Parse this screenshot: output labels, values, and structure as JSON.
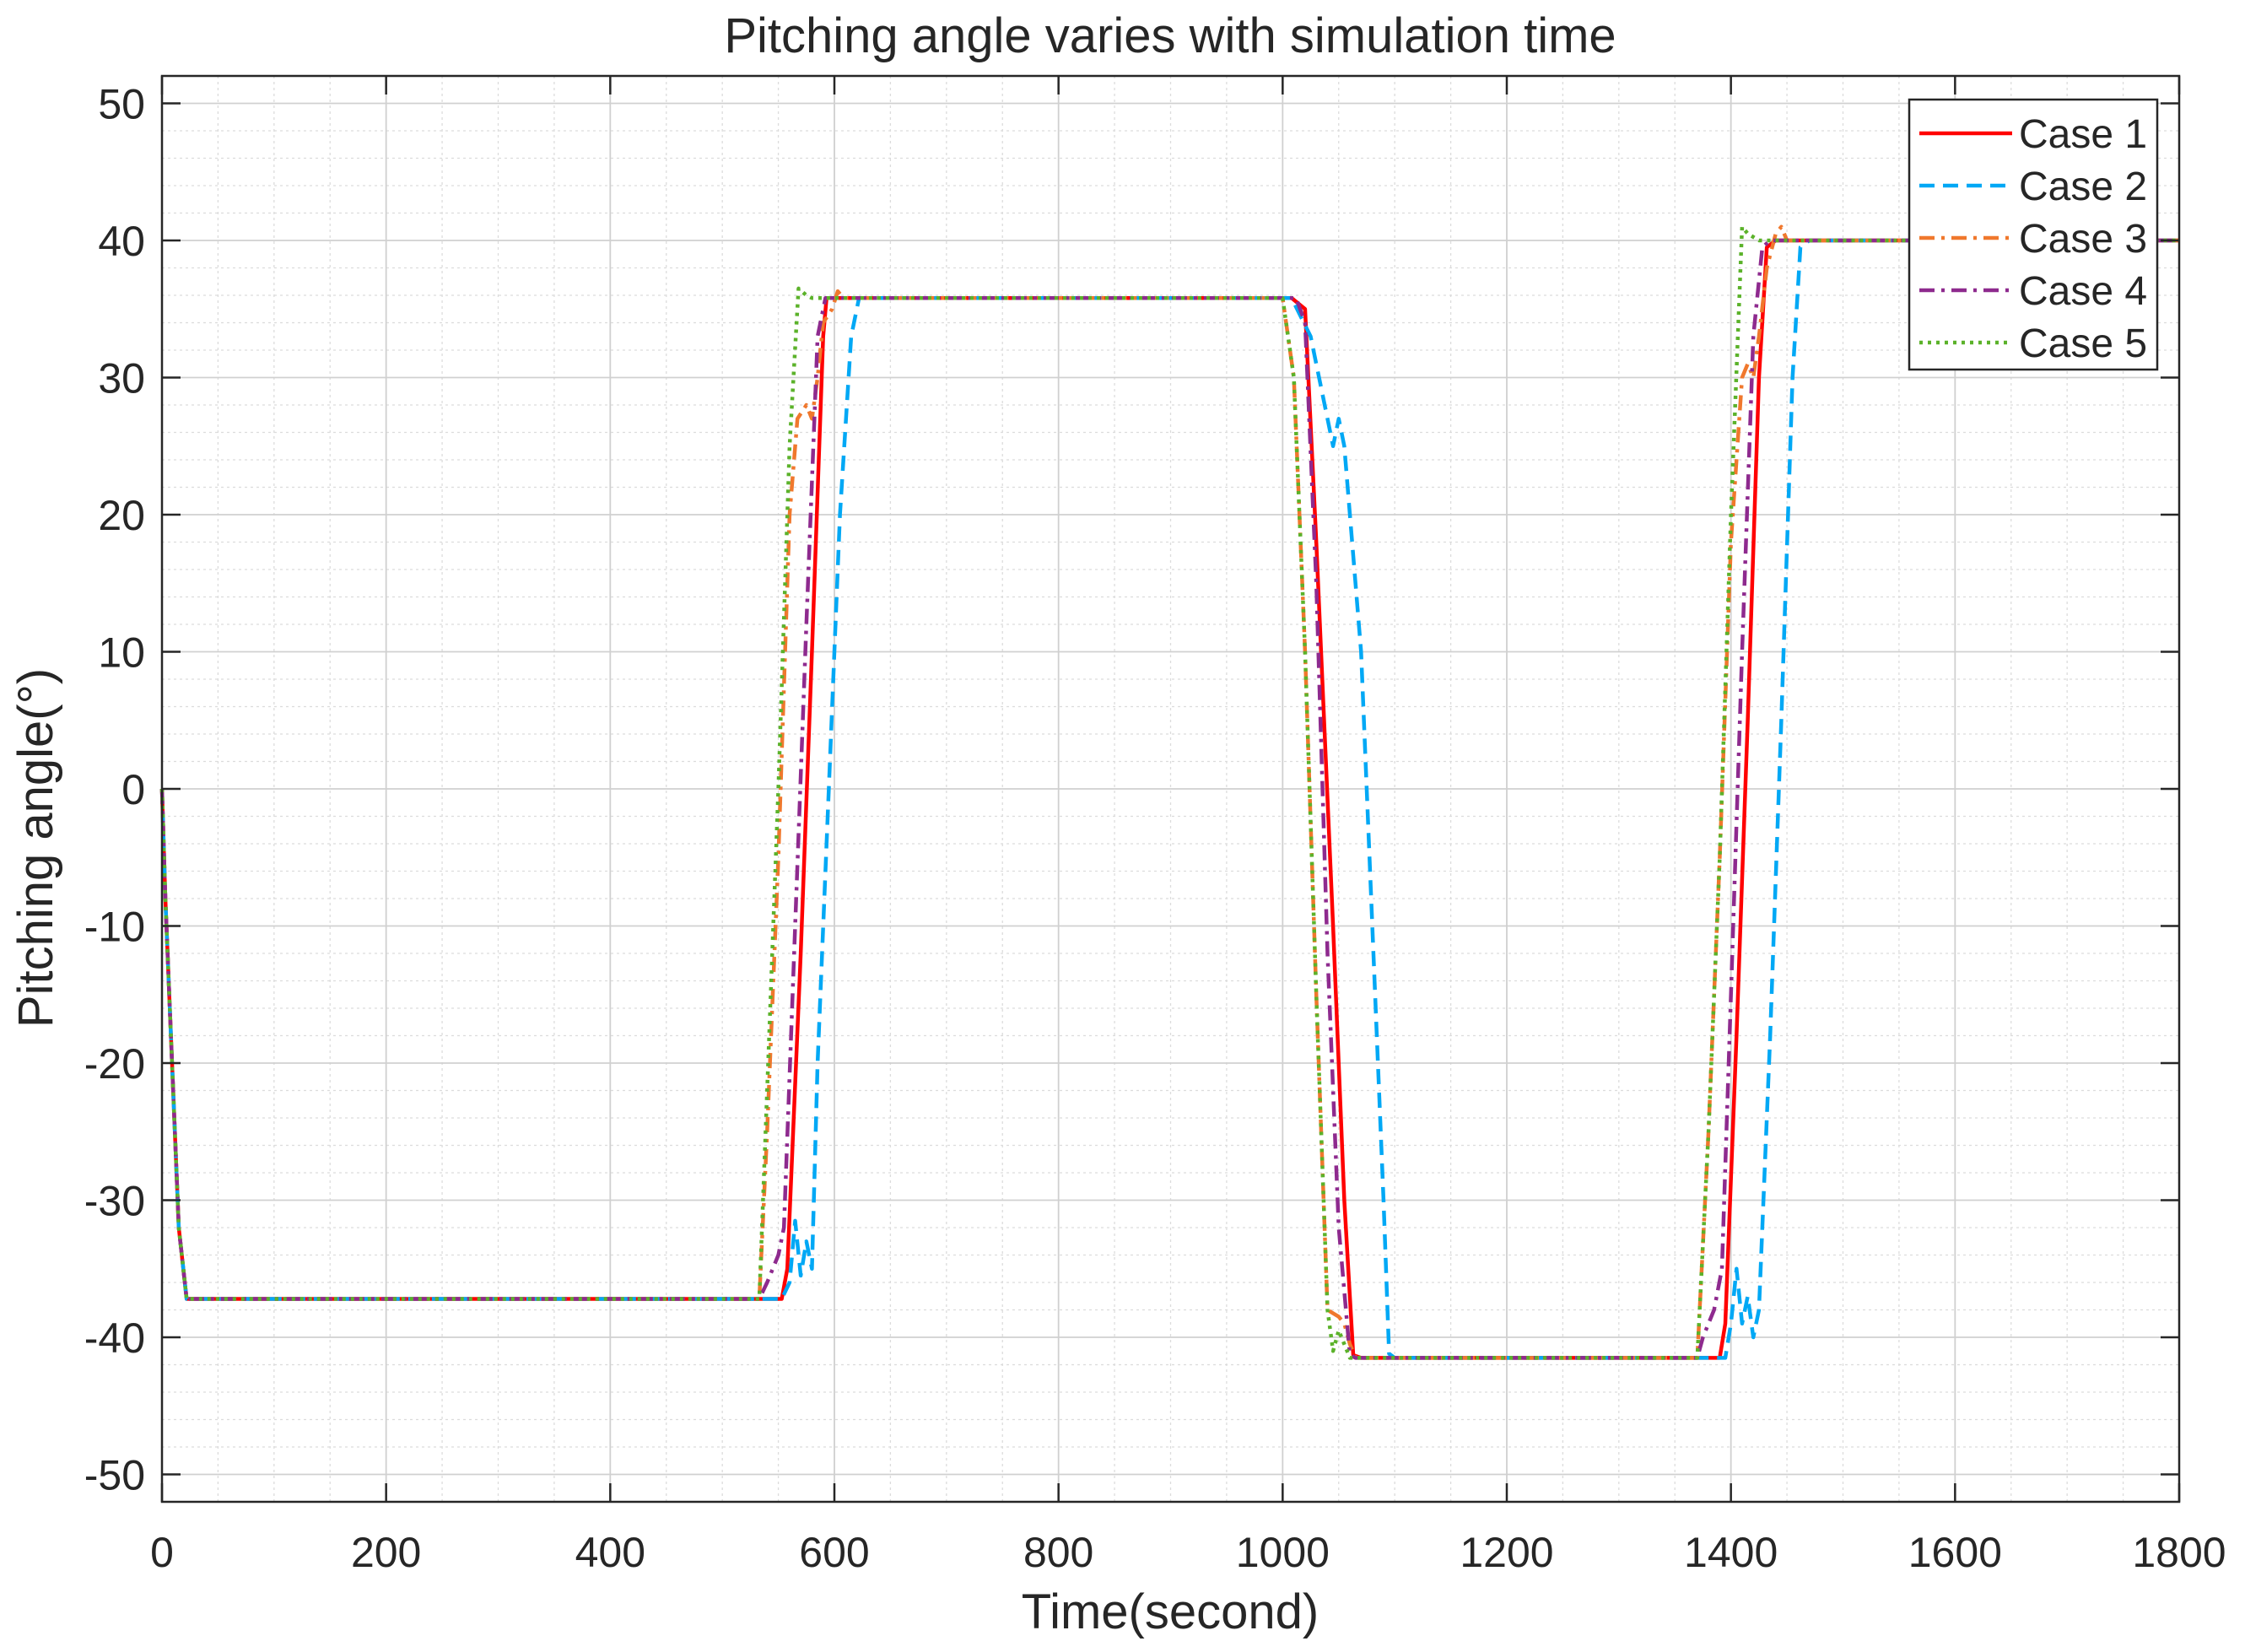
{
  "chart_data": {
    "type": "line",
    "title": "Pitching angle varies with simulation time",
    "xlabel": "Time(second)",
    "ylabel": "Pitching angle(°)",
    "xlim": [
      0,
      1800
    ],
    "ylim": [
      -52,
      52
    ],
    "xticks": [
      0,
      200,
      400,
      600,
      800,
      1000,
      1200,
      1400,
      1600,
      1800
    ],
    "yticks": [
      -50,
      -40,
      -30,
      -20,
      -10,
      0,
      10,
      20,
      30,
      40,
      50
    ],
    "grid": true,
    "minor_grid": true,
    "legend_position": "top-right",
    "series": [
      {
        "name": "Case 1",
        "color": "#ff0000",
        "style": "solid",
        "points": [
          [
            0,
            0
          ],
          [
            3,
            -8
          ],
          [
            8,
            -18
          ],
          [
            15,
            -32
          ],
          [
            22,
            -37.2
          ],
          [
            30,
            -37.2
          ],
          [
            553,
            -37.2
          ],
          [
            558,
            -35
          ],
          [
            570,
            -12
          ],
          [
            580,
            10
          ],
          [
            590,
            33
          ],
          [
            593,
            35.8
          ],
          [
            1008,
            35.8
          ],
          [
            1020,
            35
          ],
          [
            1030,
            18
          ],
          [
            1045,
            -10
          ],
          [
            1055,
            -30
          ],
          [
            1063,
            -41.3
          ],
          [
            1070,
            -41.5
          ],
          [
            1390,
            -41.5
          ],
          [
            1395,
            -39
          ],
          [
            1405,
            -18
          ],
          [
            1415,
            5
          ],
          [
            1425,
            30
          ],
          [
            1432,
            39.5
          ],
          [
            1440,
            40
          ],
          [
            1800,
            40
          ]
        ]
      },
      {
        "name": "Case 2",
        "color": "#00a8f5",
        "style": "dashed",
        "points": [
          [
            0,
            0
          ],
          [
            3,
            -8
          ],
          [
            8,
            -18
          ],
          [
            15,
            -32
          ],
          [
            22,
            -37.2
          ],
          [
            30,
            -37.2
          ],
          [
            553,
            -37.2
          ],
          [
            560,
            -36
          ],
          [
            565,
            -31.5
          ],
          [
            570,
            -35.5
          ],
          [
            575,
            -33
          ],
          [
            580,
            -35
          ],
          [
            585,
            -20
          ],
          [
            595,
            0
          ],
          [
            605,
            20
          ],
          [
            615,
            33
          ],
          [
            622,
            35.8
          ],
          [
            1008,
            35.8
          ],
          [
            1025,
            33
          ],
          [
            1040,
            27
          ],
          [
            1045,
            25
          ],
          [
            1050,
            27
          ],
          [
            1055,
            25
          ],
          [
            1070,
            10
          ],
          [
            1080,
            -10
          ],
          [
            1090,
            -30
          ],
          [
            1095,
            -41.2
          ],
          [
            1100,
            -41.5
          ],
          [
            1395,
            -41.5
          ],
          [
            1400,
            -39
          ],
          [
            1405,
            -35
          ],
          [
            1410,
            -39
          ],
          [
            1415,
            -37
          ],
          [
            1420,
            -40
          ],
          [
            1425,
            -38
          ],
          [
            1435,
            -18
          ],
          [
            1445,
            5
          ],
          [
            1455,
            30
          ],
          [
            1462,
            39.5
          ],
          [
            1470,
            40
          ],
          [
            1800,
            40
          ]
        ]
      },
      {
        "name": "Case 3",
        "color": "#f0782d",
        "style": "dashdot",
        "points": [
          [
            0,
            0
          ],
          [
            3,
            -8
          ],
          [
            8,
            -18
          ],
          [
            15,
            -32
          ],
          [
            22,
            -37.2
          ],
          [
            30,
            -37.2
          ],
          [
            533,
            -37.2
          ],
          [
            540,
            -25
          ],
          [
            550,
            -5
          ],
          [
            560,
            20
          ],
          [
            567,
            27
          ],
          [
            575,
            28
          ],
          [
            580,
            27
          ],
          [
            585,
            30
          ],
          [
            590,
            34
          ],
          [
            598,
            35
          ],
          [
            603,
            36.3
          ],
          [
            608,
            35.8
          ],
          [
            1000,
            35.8
          ],
          [
            1010,
            30
          ],
          [
            1020,
            10
          ],
          [
            1030,
            -15
          ],
          [
            1040,
            -38
          ],
          [
            1050,
            -38.5
          ],
          [
            1055,
            -39
          ],
          [
            1060,
            -40.5
          ],
          [
            1065,
            -41.5
          ],
          [
            1370,
            -41.5
          ],
          [
            1380,
            -25
          ],
          [
            1390,
            -5
          ],
          [
            1400,
            18
          ],
          [
            1410,
            30
          ],
          [
            1415,
            31
          ],
          [
            1420,
            30
          ],
          [
            1425,
            33
          ],
          [
            1432,
            38
          ],
          [
            1440,
            40.5
          ],
          [
            1445,
            41
          ],
          [
            1450,
            40
          ],
          [
            1800,
            40
          ]
        ]
      },
      {
        "name": "Case 4",
        "color": "#8e2a8e",
        "style": "dashdot",
        "points": [
          [
            0,
            0
          ],
          [
            3,
            -8
          ],
          [
            8,
            -18
          ],
          [
            15,
            -32
          ],
          [
            22,
            -37.2
          ],
          [
            30,
            -37.2
          ],
          [
            533,
            -37.2
          ],
          [
            540,
            -36
          ],
          [
            550,
            -34
          ],
          [
            555,
            -32
          ],
          [
            565,
            -10
          ],
          [
            575,
            12
          ],
          [
            585,
            33
          ],
          [
            592,
            35.8
          ],
          [
            1012,
            35.8
          ],
          [
            1020,
            34
          ],
          [
            1030,
            15
          ],
          [
            1040,
            -12
          ],
          [
            1050,
            -32
          ],
          [
            1060,
            -41.3
          ],
          [
            1065,
            -41.5
          ],
          [
            1370,
            -41.5
          ],
          [
            1375,
            -40
          ],
          [
            1385,
            -38
          ],
          [
            1392,
            -35
          ],
          [
            1400,
            -15
          ],
          [
            1410,
            10
          ],
          [
            1420,
            33
          ],
          [
            1428,
            39.5
          ],
          [
            1435,
            40
          ],
          [
            1800,
            40
          ]
        ]
      },
      {
        "name": "Case 5",
        "color": "#5bb22a",
        "style": "dotted",
        "points": [
          [
            0,
            0
          ],
          [
            3,
            -8
          ],
          [
            8,
            -18
          ],
          [
            15,
            -32
          ],
          [
            22,
            -37.2
          ],
          [
            30,
            -37.2
          ],
          [
            533,
            -37.2
          ],
          [
            540,
            -22
          ],
          [
            550,
            0
          ],
          [
            560,
            25
          ],
          [
            568,
            36.5
          ],
          [
            575,
            36
          ],
          [
            580,
            35.8
          ],
          [
            1000,
            35.8
          ],
          [
            1010,
            30
          ],
          [
            1020,
            10
          ],
          [
            1030,
            -15
          ],
          [
            1040,
            -38
          ],
          [
            1045,
            -41
          ],
          [
            1050,
            -39.5
          ],
          [
            1055,
            -40.5
          ],
          [
            1060,
            -41.5
          ],
          [
            1370,
            -41.5
          ],
          [
            1380,
            -25
          ],
          [
            1390,
            -5
          ],
          [
            1400,
            20
          ],
          [
            1410,
            41
          ],
          [
            1415,
            40.5
          ],
          [
            1425,
            40
          ],
          [
            1800,
            40
          ]
        ]
      }
    ]
  }
}
